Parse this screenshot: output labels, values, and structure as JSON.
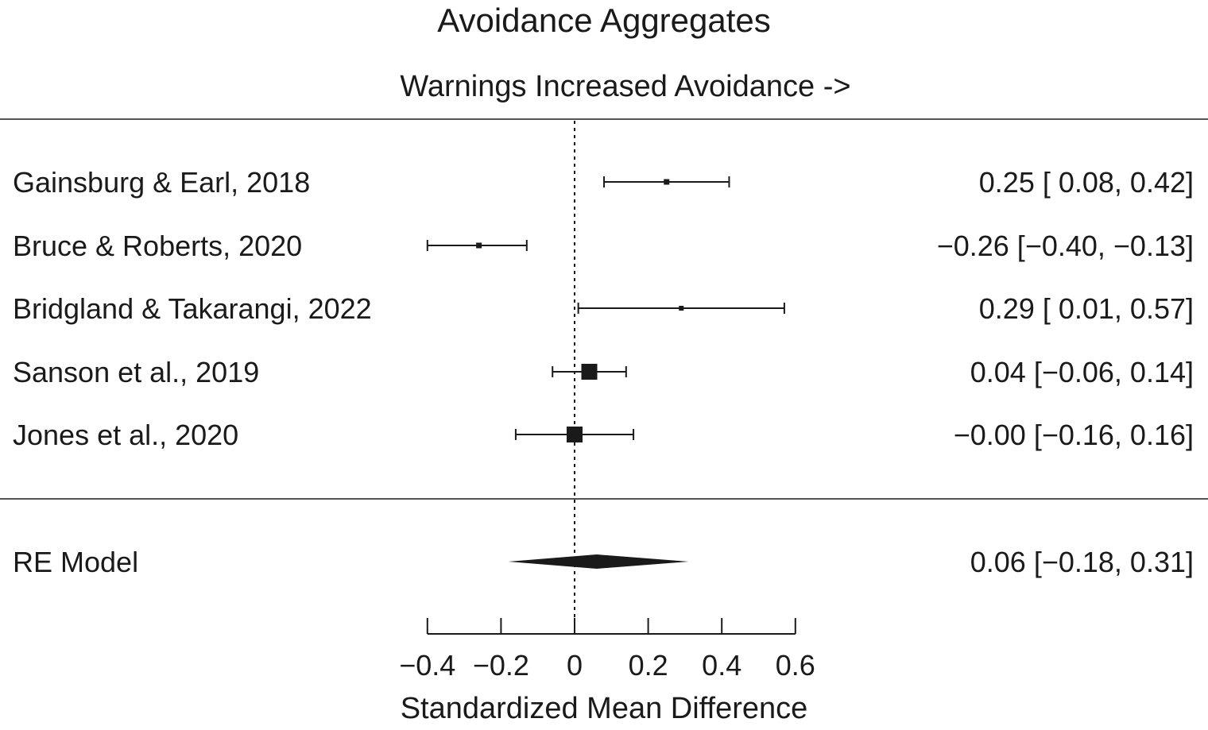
{
  "chart_data": {
    "type": "forest",
    "title": "Avoidance Aggregates",
    "subtitle": "Warnings Increased Avoidance ->",
    "xlabel": "Standardized Mean Difference",
    "xlim": [
      -0.4,
      0.6
    ],
    "xticks": [
      -0.4,
      -0.2,
      0,
      0.2,
      0.4,
      0.6
    ],
    "xtick_labels": [
      "−0.4",
      "−0.2",
      "0",
      "0.2",
      "0.4",
      "0.6"
    ],
    "reference_line": 0,
    "studies": [
      {
        "label": "Gainsburg & Earl, 2018",
        "estimate": 0.25,
        "ci_low": 0.08,
        "ci_high": 0.42,
        "weight": "small",
        "text": "0.25 [ 0.08, 0.42]"
      },
      {
        "label": "Bruce & Roberts, 2020",
        "estimate": -0.26,
        "ci_low": -0.4,
        "ci_high": -0.13,
        "weight": "small",
        "text": "−0.26 [−0.40, −0.13]"
      },
      {
        "label": "Bridgland & Takarangi, 2022",
        "estimate": 0.29,
        "ci_low": 0.01,
        "ci_high": 0.57,
        "weight": "smallest",
        "text": "0.29 [ 0.01, 0.57]"
      },
      {
        "label": "Sanson et al., 2019",
        "estimate": 0.04,
        "ci_low": -0.06,
        "ci_high": 0.14,
        "weight": "large",
        "text": "0.04 [−0.06, 0.14]"
      },
      {
        "label": "Jones et al., 2020",
        "estimate": -0.0,
        "ci_low": -0.16,
        "ci_high": 0.16,
        "weight": "large",
        "text": "−0.00 [−0.16, 0.16]"
      }
    ],
    "summary": {
      "label": "RE Model",
      "estimate": 0.06,
      "ci_low": -0.18,
      "ci_high": 0.31,
      "text": "0.06 [−0.18, 0.31]"
    },
    "colors": {
      "ink": "#1a1a1a",
      "rule": "#555555"
    }
  }
}
